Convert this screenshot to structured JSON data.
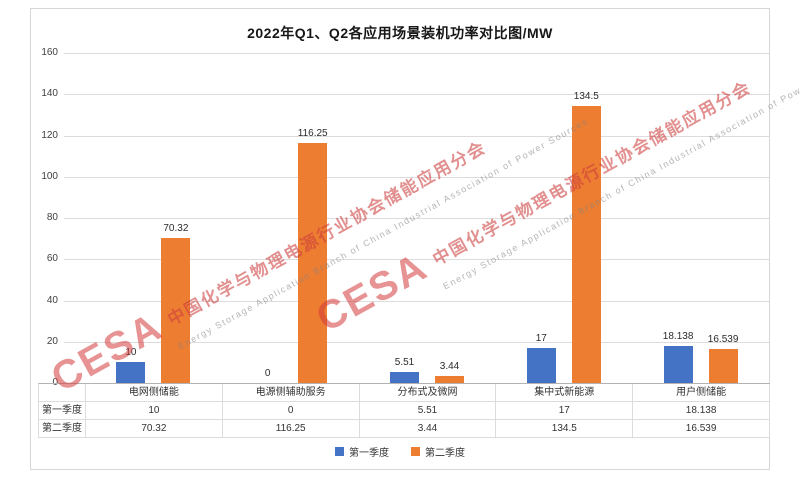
{
  "chart_data": {
    "type": "bar",
    "title": "2022年Q1、Q2各应用场景装机功率对比图/MW",
    "categories": [
      "电网侧储能",
      "电源侧辅助服务",
      "分布式及微网",
      "集中式新能源",
      "用户侧储能"
    ],
    "series": [
      {
        "name": "第一季度",
        "color": "#4472C4",
        "values": [
          10,
          0,
          5.51,
          17,
          18.138
        ],
        "labels": [
          "10",
          "0",
          "5.51",
          "17",
          "18.138"
        ]
      },
      {
        "name": "第二季度",
        "color": "#ED7D31",
        "values": [
          70.32,
          116.25,
          3.44,
          134.5,
          16.539
        ],
        "labels": [
          "70.32",
          "116.25",
          "3.44",
          "134.5",
          "16.539"
        ]
      }
    ],
    "xlabel": "",
    "ylabel": "",
    "ylim": [
      0,
      160
    ],
    "yticks": [
      0,
      20,
      40,
      60,
      80,
      100,
      120,
      140,
      160
    ],
    "grid": true,
    "legend_position": "bottom",
    "data_table_shown": true
  },
  "data_table": {
    "row_labels": [
      "第一季度",
      "第二季度"
    ],
    "rows": [
      [
        "10",
        "0",
        "5.51",
        "17",
        "18.138"
      ],
      [
        "70.32",
        "116.25",
        "3.44",
        "134.5",
        "16.539"
      ]
    ]
  },
  "legend": {
    "items": [
      {
        "label": "第一季度",
        "color": "#4472C4"
      },
      {
        "label": "第二季度",
        "color": "#ED7D31"
      }
    ]
  },
  "watermark": {
    "cesa": "CESA",
    "zh": "中国化学与物理电源行业协会储能应用分会",
    "en": "Energy Storage Application Branch of China Industrial Association of Power Sources"
  }
}
